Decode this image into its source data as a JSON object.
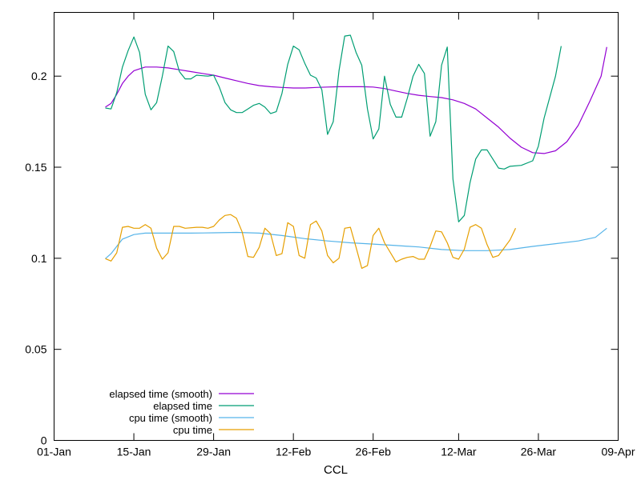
{
  "chart_data": {
    "type": "line",
    "title": "",
    "xlabel": "CCL",
    "ylabel": "",
    "x_range": [
      "2020-01-01",
      "2020-04-09"
    ],
    "ylim": [
      0,
      0.235
    ],
    "grid": false,
    "legend_position": "bottom-left",
    "x_ticks": [
      {
        "date": "2020-01-01",
        "label": "01-Jan"
      },
      {
        "date": "2020-01-15",
        "label": "15-Jan"
      },
      {
        "date": "2020-01-29",
        "label": "29-Jan"
      },
      {
        "date": "2020-02-12",
        "label": "12-Feb"
      },
      {
        "date": "2020-02-26",
        "label": "26-Feb"
      },
      {
        "date": "2020-03-12",
        "label": "12-Mar"
      },
      {
        "date": "2020-03-26",
        "label": "26-Mar"
      },
      {
        "date": "2020-04-09",
        "label": "09-Apr"
      }
    ],
    "y_ticks": [
      {
        "value": 0,
        "label": "0"
      },
      {
        "value": 0.05,
        "label": "0.05"
      },
      {
        "value": 0.1,
        "label": "0.1"
      },
      {
        "value": 0.15,
        "label": "0.15"
      },
      {
        "value": 0.2,
        "label": "0.2"
      }
    ],
    "series": [
      {
        "name": "elapsed time (smooth)",
        "color": "#9400d3",
        "points": [
          [
            "2020-01-10",
            0.183
          ],
          [
            "2020-01-11",
            0.185
          ],
          [
            "2020-01-12",
            0.19
          ],
          [
            "2020-01-13",
            0.196
          ],
          [
            "2020-01-14",
            0.2
          ],
          [
            "2020-01-15",
            0.203
          ],
          [
            "2020-01-16",
            0.204
          ],
          [
            "2020-01-17",
            0.205
          ],
          [
            "2020-01-19",
            0.205
          ],
          [
            "2020-01-21",
            0.2045
          ],
          [
            "2020-01-23",
            0.2035
          ],
          [
            "2020-01-25",
            0.2025
          ],
          [
            "2020-01-27",
            0.2015
          ],
          [
            "2020-01-29",
            0.2005
          ],
          [
            "2020-01-31",
            0.199
          ],
          [
            "2020-02-02",
            0.1975
          ],
          [
            "2020-02-04",
            0.196
          ],
          [
            "2020-02-06",
            0.1948
          ],
          [
            "2020-02-08",
            0.1942
          ],
          [
            "2020-02-10",
            0.1938
          ],
          [
            "2020-02-12",
            0.1935
          ],
          [
            "2020-02-14",
            0.1935
          ],
          [
            "2020-02-16",
            0.1938
          ],
          [
            "2020-02-18",
            0.194
          ],
          [
            "2020-02-20",
            0.1942
          ],
          [
            "2020-02-22",
            0.1942
          ],
          [
            "2020-02-24",
            0.1942
          ],
          [
            "2020-02-26",
            0.194
          ],
          [
            "2020-02-28",
            0.1932
          ],
          [
            "2020-03-01",
            0.1918
          ],
          [
            "2020-03-03",
            0.1905
          ],
          [
            "2020-03-05",
            0.1895
          ],
          [
            "2020-03-07",
            0.1888
          ],
          [
            "2020-03-09",
            0.1882
          ],
          [
            "2020-03-11",
            0.187
          ],
          [
            "2020-03-13",
            0.185
          ],
          [
            "2020-03-15",
            0.182
          ],
          [
            "2020-03-17",
            0.177
          ],
          [
            "2020-03-19",
            0.172
          ],
          [
            "2020-03-21",
            0.166
          ],
          [
            "2020-03-23",
            0.161
          ],
          [
            "2020-03-25",
            0.158
          ],
          [
            "2020-03-27",
            0.1575
          ],
          [
            "2020-03-29",
            0.159
          ],
          [
            "2020-03-31",
            0.164
          ],
          [
            "2020-04-02",
            0.173
          ],
          [
            "2020-04-04",
            0.186
          ],
          [
            "2020-04-06",
            0.2
          ],
          [
            "2020-04-07",
            0.216
          ]
        ]
      },
      {
        "name": "elapsed time",
        "color": "#009e73",
        "points": [
          [
            "2020-01-10",
            0.1825
          ],
          [
            "2020-01-11",
            0.182
          ],
          [
            "2020-01-12",
            0.191
          ],
          [
            "2020-01-13",
            0.205
          ],
          [
            "2020-01-14",
            0.214
          ],
          [
            "2020-01-15",
            0.2215
          ],
          [
            "2020-01-16",
            0.213
          ],
          [
            "2020-01-17",
            0.19
          ],
          [
            "2020-01-18",
            0.1815
          ],
          [
            "2020-01-19",
            0.1855
          ],
          [
            "2020-01-20",
            0.2
          ],
          [
            "2020-01-21",
            0.2165
          ],
          [
            "2020-01-22",
            0.2135
          ],
          [
            "2020-01-23",
            0.2025
          ],
          [
            "2020-01-24",
            0.1985
          ],
          [
            "2020-01-25",
            0.1985
          ],
          [
            "2020-01-26",
            0.2005
          ],
          [
            "2020-01-28",
            0.2
          ],
          [
            "2020-01-29",
            0.2005
          ],
          [
            "2020-01-30",
            0.194
          ],
          [
            "2020-01-31",
            0.1855
          ],
          [
            "2020-02-01",
            0.1815
          ],
          [
            "2020-02-02",
            0.18
          ],
          [
            "2020-02-03",
            0.18
          ],
          [
            "2020-02-04",
            0.182
          ],
          [
            "2020-02-05",
            0.184
          ],
          [
            "2020-02-06",
            0.185
          ],
          [
            "2020-02-07",
            0.183
          ],
          [
            "2020-02-08",
            0.1795
          ],
          [
            "2020-02-09",
            0.1805
          ],
          [
            "2020-02-10",
            0.1905
          ],
          [
            "2020-02-11",
            0.2065
          ],
          [
            "2020-02-12",
            0.2165
          ],
          [
            "2020-02-13",
            0.2145
          ],
          [
            "2020-02-14",
            0.207
          ],
          [
            "2020-02-15",
            0.2005
          ],
          [
            "2020-02-16",
            0.199
          ],
          [
            "2020-02-17",
            0.1925
          ],
          [
            "2020-02-18",
            0.168
          ],
          [
            "2020-02-19",
            0.175
          ],
          [
            "2020-02-20",
            0.203
          ],
          [
            "2020-02-21",
            0.222
          ],
          [
            "2020-02-22",
            0.2225
          ],
          [
            "2020-02-23",
            0.213
          ],
          [
            "2020-02-24",
            0.206
          ],
          [
            "2020-02-25",
            0.182
          ],
          [
            "2020-02-26",
            0.1655
          ],
          [
            "2020-02-27",
            0.171
          ],
          [
            "2020-02-28",
            0.2
          ],
          [
            "2020-02-29",
            0.1845
          ],
          [
            "2020-03-01",
            0.1775
          ],
          [
            "2020-03-02",
            0.1775
          ],
          [
            "2020-03-03",
            0.188
          ],
          [
            "2020-03-04",
            0.2
          ],
          [
            "2020-03-05",
            0.2065
          ],
          [
            "2020-03-06",
            0.2015
          ],
          [
            "2020-03-07",
            0.167
          ],
          [
            "2020-03-08",
            0.175
          ],
          [
            "2020-03-09",
            0.206
          ],
          [
            "2020-03-10",
            0.216
          ],
          [
            "2020-03-11",
            0.1435
          ],
          [
            "2020-03-12",
            0.12
          ],
          [
            "2020-03-13",
            0.1235
          ],
          [
            "2020-03-14",
            0.1415
          ],
          [
            "2020-03-15",
            0.1545
          ],
          [
            "2020-03-16",
            0.1595
          ],
          [
            "2020-03-17",
            0.1595
          ],
          [
            "2020-03-18",
            0.1545
          ],
          [
            "2020-03-19",
            0.1495
          ],
          [
            "2020-03-20",
            0.149
          ],
          [
            "2020-03-21",
            0.1505
          ],
          [
            "2020-03-23",
            0.151
          ],
          [
            "2020-03-25",
            0.1535
          ],
          [
            "2020-03-26",
            0.1615
          ],
          [
            "2020-03-27",
            0.177
          ],
          [
            "2020-03-29",
            0.2
          ],
          [
            "2020-03-30",
            0.2165
          ]
        ]
      },
      {
        "name": "cpu time (smooth)",
        "color": "#56b4e9",
        "points": [
          [
            "2020-01-10",
            0.0998
          ],
          [
            "2020-01-11",
            0.1025
          ],
          [
            "2020-01-12",
            0.1065
          ],
          [
            "2020-01-13",
            0.1105
          ],
          [
            "2020-01-15",
            0.113
          ],
          [
            "2020-01-17",
            0.1138
          ],
          [
            "2020-01-21",
            0.1138
          ],
          [
            "2020-01-25",
            0.1138
          ],
          [
            "2020-01-29",
            0.114
          ],
          [
            "2020-02-02",
            0.1142
          ],
          [
            "2020-02-06",
            0.1138
          ],
          [
            "2020-02-10",
            0.1125
          ],
          [
            "2020-02-14",
            0.1108
          ],
          [
            "2020-02-18",
            0.1095
          ],
          [
            "2020-02-22",
            0.1085
          ],
          [
            "2020-02-26",
            0.1078
          ],
          [
            "2020-03-01",
            0.107
          ],
          [
            "2020-03-05",
            0.1062
          ],
          [
            "2020-03-09",
            0.1048
          ],
          [
            "2020-03-13",
            0.1042
          ],
          [
            "2020-03-17",
            0.1042
          ],
          [
            "2020-03-21",
            0.1048
          ],
          [
            "2020-03-25",
            0.1065
          ],
          [
            "2020-03-29",
            0.108
          ],
          [
            "2020-04-02",
            0.1095
          ],
          [
            "2020-04-05",
            0.1115
          ],
          [
            "2020-04-07",
            0.1165
          ]
        ]
      },
      {
        "name": "cpu time",
        "color": "#e69f00",
        "points": [
          [
            "2020-01-10",
            0.0998
          ],
          [
            "2020-01-11",
            0.0985
          ],
          [
            "2020-01-12",
            0.103
          ],
          [
            "2020-01-13",
            0.117
          ],
          [
            "2020-01-14",
            0.1175
          ],
          [
            "2020-01-15",
            0.1165
          ],
          [
            "2020-01-16",
            0.1165
          ],
          [
            "2020-01-17",
            0.1185
          ],
          [
            "2020-01-18",
            0.1165
          ],
          [
            "2020-01-19",
            0.1055
          ],
          [
            "2020-01-20",
            0.0995
          ],
          [
            "2020-01-21",
            0.103
          ],
          [
            "2020-01-22",
            0.1175
          ],
          [
            "2020-01-23",
            0.1175
          ],
          [
            "2020-01-24",
            0.1165
          ],
          [
            "2020-01-26",
            0.117
          ],
          [
            "2020-01-27",
            0.117
          ],
          [
            "2020-01-28",
            0.1165
          ],
          [
            "2020-01-29",
            0.1175
          ],
          [
            "2020-01-30",
            0.121
          ],
          [
            "2020-01-31",
            0.1235
          ],
          [
            "2020-02-01",
            0.124
          ],
          [
            "2020-02-02",
            0.122
          ],
          [
            "2020-02-03",
            0.1145
          ],
          [
            "2020-02-04",
            0.101
          ],
          [
            "2020-02-05",
            0.1005
          ],
          [
            "2020-02-06",
            0.106
          ],
          [
            "2020-02-07",
            0.1165
          ],
          [
            "2020-02-08",
            0.1135
          ],
          [
            "2020-02-09",
            0.1015
          ],
          [
            "2020-02-10",
            0.1025
          ],
          [
            "2020-02-11",
            0.1195
          ],
          [
            "2020-02-12",
            0.1175
          ],
          [
            "2020-02-13",
            0.1015
          ],
          [
            "2020-02-14",
            0.1
          ],
          [
            "2020-02-15",
            0.1185
          ],
          [
            "2020-02-16",
            0.1205
          ],
          [
            "2020-02-17",
            0.115
          ],
          [
            "2020-02-18",
            0.1015
          ],
          [
            "2020-02-19",
            0.0975
          ],
          [
            "2020-02-20",
            0.1
          ],
          [
            "2020-02-21",
            0.1165
          ],
          [
            "2020-02-22",
            0.117
          ],
          [
            "2020-02-23",
            0.106
          ],
          [
            "2020-02-24",
            0.0945
          ],
          [
            "2020-02-25",
            0.096
          ],
          [
            "2020-02-26",
            0.1125
          ],
          [
            "2020-02-27",
            0.1165
          ],
          [
            "2020-02-28",
            0.1085
          ],
          [
            "2020-03-01",
            0.098
          ],
          [
            "2020-03-02",
            0.0995
          ],
          [
            "2020-03-03",
            0.1005
          ],
          [
            "2020-03-04",
            0.101
          ],
          [
            "2020-03-05",
            0.0995
          ],
          [
            "2020-03-06",
            0.0995
          ],
          [
            "2020-03-07",
            0.1065
          ],
          [
            "2020-03-08",
            0.115
          ],
          [
            "2020-03-09",
            0.1145
          ],
          [
            "2020-03-10",
            0.1085
          ],
          [
            "2020-03-11",
            0.1005
          ],
          [
            "2020-03-12",
            0.0995
          ],
          [
            "2020-03-13",
            0.105
          ],
          [
            "2020-03-14",
            0.117
          ],
          [
            "2020-03-15",
            0.1185
          ],
          [
            "2020-03-16",
            0.1165
          ],
          [
            "2020-03-17",
            0.1075
          ],
          [
            "2020-03-18",
            0.1005
          ],
          [
            "2020-03-19",
            0.1015
          ],
          [
            "2020-03-21",
            0.11
          ],
          [
            "2020-03-22",
            0.1165
          ]
        ]
      }
    ]
  }
}
